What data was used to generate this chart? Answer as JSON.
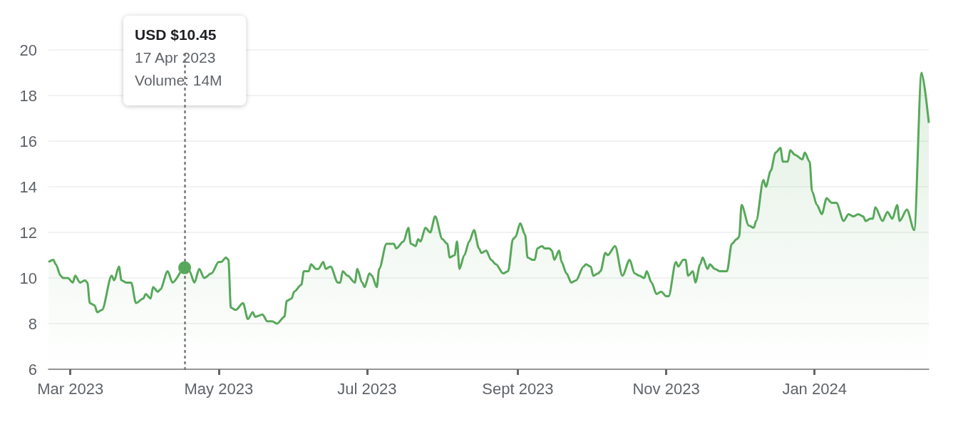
{
  "chart_data": {
    "type": "area",
    "color": "#57a85a",
    "x": [
      "2023-02-20",
      "2023-02-22",
      "2023-02-23",
      "2023-02-25",
      "2023-02-26",
      "2023-02-28",
      "2023-03-02",
      "2023-03-03",
      "2023-03-05",
      "2023-03-07",
      "2023-03-08",
      "2023-03-09",
      "2023-03-11",
      "2023-03-12",
      "2023-03-14",
      "2023-03-18",
      "2023-03-19",
      "2023-03-21",
      "2023-03-22",
      "2023-03-24",
      "2023-03-26",
      "2023-03-28",
      "2023-03-31",
      "2023-04-01",
      "2023-04-03",
      "2023-04-04",
      "2023-04-06",
      "2023-04-07",
      "2023-04-10",
      "2023-04-12",
      "2023-04-17",
      "2023-04-19",
      "2023-04-21",
      "2023-04-23",
      "2023-04-25",
      "2023-04-28",
      "2023-05-01",
      "2023-05-02",
      "2023-05-04",
      "2023-05-05",
      "2023-05-06",
      "2023-05-08",
      "2023-05-11",
      "2023-05-13",
      "2023-05-15",
      "2023-05-16",
      "2023-05-19",
      "2023-05-21",
      "2023-05-23",
      "2023-05-25",
      "2023-05-28",
      "2023-05-29",
      "2023-05-31",
      "2023-06-01",
      "2023-06-04",
      "2023-06-05",
      "2023-06-07",
      "2023-06-08",
      "2023-06-10",
      "2023-06-11",
      "2023-06-13",
      "2023-06-14",
      "2023-06-16",
      "2023-06-19",
      "2023-06-20",
      "2023-06-21",
      "2023-06-23",
      "2023-06-26",
      "2023-06-27",
      "2023-06-29",
      "2023-06-30",
      "2023-07-02",
      "2023-07-03",
      "2023-07-05",
      "2023-07-06",
      "2023-07-09",
      "2023-07-10",
      "2023-07-12",
      "2023-07-13",
      "2023-07-16",
      "2023-07-18",
      "2023-07-19",
      "2023-07-21",
      "2023-07-22",
      "2023-07-23",
      "2023-07-25",
      "2023-07-27",
      "2023-07-29",
      "2023-08-01",
      "2023-08-03",
      "2023-08-04",
      "2023-08-06",
      "2023-08-07",
      "2023-08-08",
      "2023-08-10",
      "2023-08-12",
      "2023-08-14",
      "2023-08-16",
      "2023-08-17",
      "2023-08-19",
      "2023-08-21",
      "2023-08-23",
      "2023-08-26",
      "2023-08-28",
      "2023-08-30",
      "2023-08-31",
      "2023-09-02",
      "2023-09-04",
      "2023-09-05",
      "2023-09-07",
      "2023-09-08",
      "2023-09-09",
      "2023-09-11",
      "2023-09-12",
      "2023-09-14",
      "2023-09-15",
      "2023-09-16",
      "2023-09-18",
      "2023-09-19",
      "2023-09-21",
      "2023-09-23",
      "2023-09-25",
      "2023-09-28",
      "2023-09-29",
      "2023-10-01",
      "2023-10-02",
      "2023-10-04",
      "2023-10-05",
      "2023-10-07",
      "2023-10-08",
      "2023-10-11",
      "2023-10-14",
      "2023-10-17",
      "2023-10-19",
      "2023-10-21",
      "2023-10-23",
      "2023-10-24",
      "2023-10-26",
      "2023-10-28",
      "2023-10-30",
      "2023-11-01",
      "2023-11-02",
      "2023-11-05",
      "2023-11-06",
      "2023-11-08",
      "2023-11-09",
      "2023-11-10",
      "2023-11-12",
      "2023-11-13",
      "2023-11-15",
      "2023-11-16",
      "2023-11-18",
      "2023-11-19",
      "2023-11-21",
      "2023-11-23",
      "2023-11-26",
      "2023-11-28",
      "2023-11-30",
      "2023-12-01",
      "2023-12-02",
      "2023-12-05",
      "2023-12-07",
      "2023-12-08",
      "2023-12-11",
      "2023-12-12",
      "2023-12-14",
      "2023-12-16",
      "2023-12-18",
      "2023-12-19",
      "2023-12-21",
      "2023-12-22",
      "2023-12-24",
      "2023-12-27",
      "2023-12-28",
      "2023-12-30",
      "2023-12-31",
      "2024-01-02",
      "2024-01-04",
      "2024-01-06",
      "2024-01-08",
      "2024-01-10",
      "2024-01-13",
      "2024-01-15",
      "2024-01-17",
      "2024-01-19",
      "2024-01-21",
      "2024-01-22",
      "2024-01-24",
      "2024-01-25",
      "2024-01-26",
      "2024-01-29",
      "2024-01-31",
      "2024-02-02",
      "2024-02-04",
      "2024-02-05",
      "2024-02-08",
      "2024-02-11",
      "2024-02-14",
      "2024-02-17"
    ],
    "values": [
      10.7,
      10.8,
      10.6,
      10.1,
      10.0,
      10.0,
      9.8,
      10.1,
      9.8,
      9.9,
      9.8,
      8.9,
      8.8,
      8.5,
      8.6,
      10.1,
      9.9,
      10.5,
      9.9,
      9.8,
      9.8,
      8.9,
      9.1,
      9.3,
      9.1,
      9.6,
      9.4,
      9.5,
      10.3,
      9.8,
      10.45,
      10.3,
      9.8,
      10.4,
      10.0,
      10.2,
      10.7,
      10.7,
      10.9,
      10.8,
      8.7,
      8.6,
      8.9,
      8.2,
      8.5,
      8.3,
      8.4,
      8.1,
      8.1,
      8.0,
      8.3,
      9.0,
      9.1,
      9.4,
      9.7,
      10.3,
      10.3,
      10.6,
      10.4,
      10.4,
      10.7,
      10.4,
      10.5,
      9.8,
      9.8,
      10.3,
      10.1,
      9.8,
      10.4,
      9.8,
      9.6,
      10.2,
      10.1,
      9.6,
      10.4,
      11.5,
      11.5,
      11.5,
      11.3,
      11.6,
      12.2,
      11.5,
      11.4,
      11.7,
      11.6,
      12.2,
      12.0,
      12.7,
      11.7,
      11.5,
      10.9,
      11.0,
      11.6,
      10.4,
      11.0,
      11.6,
      12.1,
      11.3,
      11.1,
      11.2,
      10.8,
      10.6,
      10.2,
      10.3,
      11.7,
      11.8,
      12.4,
      11.9,
      10.9,
      10.8,
      10.8,
      11.3,
      11.4,
      11.3,
      11.3,
      11.2,
      10.8,
      11.2,
      10.7,
      10.2,
      9.8,
      9.9,
      10.5,
      10.6,
      10.5,
      10.1,
      10.2,
      10.3,
      11.1,
      11.0,
      11.4,
      10.1,
      10.8,
      10.2,
      10.1,
      10.0,
      10.3,
      9.8,
      9.3,
      9.4,
      9.2,
      9.2,
      10.7,
      10.5,
      10.8,
      10.8,
      10.1,
      10.3,
      9.8,
      10.6,
      10.9,
      10.4,
      10.6,
      10.4,
      10.3,
      10.3,
      11.5,
      11.7,
      11.8,
      13.2,
      12.3,
      12.2,
      12.5,
      14.3,
      14.0,
      14.7,
      15.5,
      15.7,
      15.1,
      15.1,
      15.6,
      15.4,
      15.2,
      15.5,
      15.1,
      13.8,
      13.2,
      12.8,
      13.5,
      13.3,
      13.3,
      12.5,
      12.8,
      12.7,
      12.8,
      12.7,
      12.5,
      12.6,
      12.6,
      13.1,
      12.5,
      12.9,
      12.6,
      13.2,
      12.5,
      13.0,
      12.1,
      19.0,
      16.8
    ],
    "xlim": [
      "2023-02-20",
      "2024-02-17"
    ],
    "xticks": [
      {
        "value": "2023-03-01",
        "label": "Mar 2023"
      },
      {
        "value": "2023-05-01",
        "label": "May 2023"
      },
      {
        "value": "2023-07-01",
        "label": "Jul 2023"
      },
      {
        "value": "2023-09-01",
        "label": "Sept 2023"
      },
      {
        "value": "2023-11-01",
        "label": "Nov 2023"
      },
      {
        "value": "2024-01-01",
        "label": "Jan 2024"
      }
    ],
    "ylim": [
      6,
      20
    ],
    "yticks": [
      6,
      8,
      10,
      12,
      14,
      16,
      18,
      20
    ],
    "grid": "y",
    "ref_lines": [
      {
        "axis": "x",
        "value": "2023-04-17",
        "color": "#777777",
        "line_style": "dotted"
      }
    ],
    "annotations": [
      "USD $10.45\n17 Apr 2023\nVolume: 14M"
    ]
  }
}
